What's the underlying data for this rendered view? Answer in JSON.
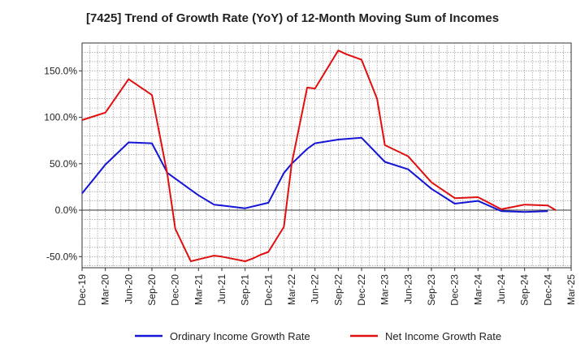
{
  "chart_data": {
    "type": "line",
    "title": "[7425]  Trend of Growth Rate (YoY) of 12-Month Moving Sum of Incomes",
    "xlabel": "",
    "ylabel": "",
    "x_tick_labels": [
      "Dec-19",
      "Mar-20",
      "Jun-20",
      "Sep-20",
      "Dec-20",
      "Mar-21",
      "Jun-21",
      "Sep-21",
      "Dec-21",
      "Mar-22",
      "Jun-22",
      "Sep-22",
      "Dec-22",
      "Mar-23",
      "Jun-23",
      "Sep-23",
      "Dec-23",
      "Mar-24",
      "Jun-24",
      "Sep-24",
      "Dec-24",
      "Mar-25"
    ],
    "y_ticks": [
      -50,
      0,
      50,
      100,
      150
    ],
    "y_tick_labels": [
      "-50.0%",
      "0.0%",
      "50.0%",
      "100.0%",
      "150.0%"
    ],
    "ylim": [
      -62,
      180
    ],
    "x_range_months": [
      0,
      63
    ],
    "grid": true,
    "legend_position": "bottom",
    "series": [
      {
        "name": "Ordinary Income Growth Rate",
        "color": "#1515d6",
        "x": [
          0,
          3,
          6,
          9,
          11,
          12,
          14,
          15,
          17,
          18,
          21,
          24,
          26,
          27,
          29,
          30,
          33,
          36,
          39,
          42,
          45,
          48,
          51,
          54,
          57,
          60
        ],
        "y": [
          18,
          49,
          73,
          72,
          40,
          34,
          22,
          16,
          6,
          5,
          2,
          8,
          40,
          50,
          66,
          72,
          76,
          78,
          52,
          44,
          23,
          7,
          10,
          -1,
          -2,
          -1
        ]
      },
      {
        "name": "Net Income Growth Rate",
        "color": "#e01010",
        "x": [
          0,
          3,
          6,
          9,
          11,
          12,
          14,
          15,
          17,
          18,
          21,
          22,
          23,
          24,
          26,
          27,
          29,
          30,
          33,
          34,
          36,
          38,
          39,
          42,
          45,
          48,
          51,
          54,
          57,
          60,
          61
        ],
        "y": [
          97,
          105,
          141,
          124,
          38,
          -20,
          -55,
          -53,
          -49,
          -50,
          -55,
          -52,
          -48,
          -45,
          -18,
          50,
          132,
          131,
          172,
          168,
          162,
          120,
          70,
          58,
          30,
          13,
          14,
          1,
          6,
          5,
          0
        ]
      }
    ]
  },
  "legend": {
    "items": [
      {
        "label": "Ordinary Income Growth Rate",
        "color": "#1515d6"
      },
      {
        "label": "Net Income Growth Rate",
        "color": "#e01010"
      }
    ]
  }
}
